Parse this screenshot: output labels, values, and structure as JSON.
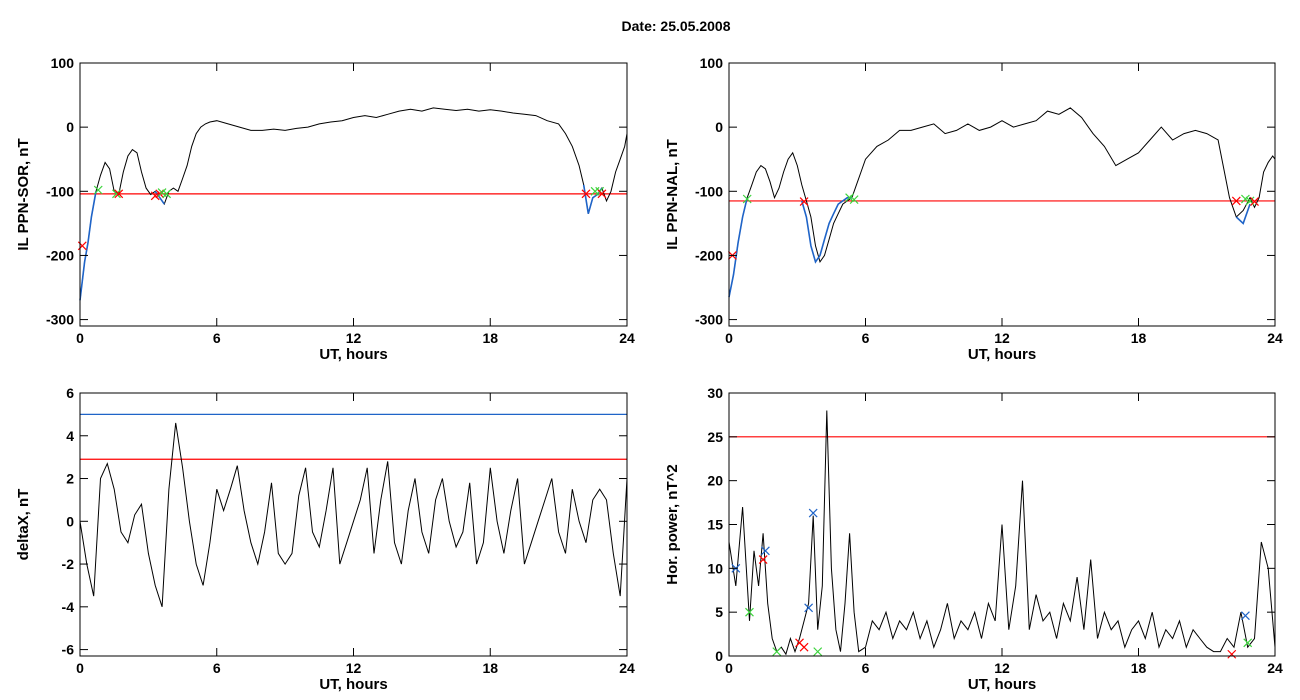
{
  "page": {
    "title": "Date:  25.05.2008"
  },
  "colors": {
    "black": "#000000",
    "red": "#ff0000",
    "blue": "#1f64c8",
    "green": "#3bd43b",
    "axes": "#000000"
  },
  "chart_data": [
    {
      "type": "line",
      "xlabel": "UT, hours",
      "ylabel": "IL PPN-SOR, nT",
      "xlim": [
        0,
        24
      ],
      "ylim": [
        -310,
        100
      ],
      "xticks": [
        0,
        6,
        12,
        18,
        24
      ],
      "yticks": [
        -300,
        -200,
        -100,
        0,
        100
      ],
      "grid": false,
      "series": [
        {
          "style": "black",
          "x": [
            0,
            0.2,
            0.35,
            0.5,
            0.7,
            0.9,
            1.1,
            1.3,
            1.5,
            1.7,
            1.9,
            2.1,
            2.3,
            2.5,
            2.7,
            2.9,
            3.1,
            3.3,
            3.5,
            3.7,
            3.9,
            4.1,
            4.3,
            4.5,
            4.7,
            4.9,
            5.1,
            5.3,
            5.5,
            5.7,
            6.0,
            6.5,
            7.0,
            7.5,
            8.0,
            8.5,
            9.0,
            9.5,
            10.0,
            10.5,
            11.0,
            11.5,
            12.0,
            12.5,
            13.0,
            13.5,
            14.0,
            14.5,
            15.0,
            15.5,
            16.0,
            16.5,
            17.0,
            17.5,
            18.0,
            18.5,
            19.0,
            19.5,
            20.0,
            20.5,
            21.0,
            21.3,
            21.6,
            21.9,
            22.1,
            22.3,
            22.5,
            22.7,
            22.9,
            23.1,
            23.3,
            23.5,
            23.7,
            23.9,
            24.0
          ],
          "y": [
            -270,
            -210,
            -180,
            -140,
            -100,
            -75,
            -55,
            -65,
            -100,
            -105,
            -70,
            -45,
            -35,
            -40,
            -70,
            -95,
            -105,
            -100,
            -110,
            -120,
            -100,
            -95,
            -100,
            -80,
            -60,
            -30,
            -10,
            0,
            5,
            8,
            10,
            5,
            0,
            -5,
            -5,
            -3,
            -5,
            -2,
            0,
            5,
            8,
            10,
            15,
            18,
            15,
            20,
            25,
            28,
            25,
            30,
            28,
            26,
            28,
            25,
            27,
            25,
            22,
            20,
            18,
            10,
            5,
            -10,
            -30,
            -60,
            -90,
            -135,
            -110,
            -105,
            -95,
            -115,
            -100,
            -70,
            -50,
            -30,
            -10
          ]
        },
        {
          "style": "blue",
          "x": [
            0,
            0.2,
            0.35,
            0.5,
            0.7,
            3.3,
            3.5,
            3.7,
            22.1,
            22.3,
            22.5,
            22.7,
            22.9
          ],
          "y": [
            -270,
            -210,
            -180,
            -140,
            -100,
            -100,
            -110,
            -120,
            -90,
            -135,
            -110,
            -105,
            -95
          ]
        }
      ],
      "hlines": [
        {
          "y": -104,
          "style": "red"
        }
      ],
      "markers": [
        {
          "x": 0.1,
          "y": -185,
          "style": "red"
        },
        {
          "x": 0.8,
          "y": -98,
          "style": "green"
        },
        {
          "x": 1.6,
          "y": -104,
          "style": "green"
        },
        {
          "x": 1.7,
          "y": -104,
          "style": "red"
        },
        {
          "x": 3.3,
          "y": -107,
          "style": "red"
        },
        {
          "x": 3.5,
          "y": -104,
          "style": "red"
        },
        {
          "x": 3.6,
          "y": -102,
          "style": "green"
        },
        {
          "x": 3.8,
          "y": -104,
          "style": "green"
        },
        {
          "x": 22.2,
          "y": -104,
          "style": "red"
        },
        {
          "x": 22.6,
          "y": -100,
          "style": "green"
        },
        {
          "x": 22.8,
          "y": -100,
          "style": "green"
        },
        {
          "x": 22.9,
          "y": -104,
          "style": "red"
        }
      ]
    },
    {
      "type": "line",
      "xlabel": "UT, hours",
      "ylabel": "IL PPN-NAL, nT",
      "xlim": [
        0,
        24
      ],
      "ylim": [
        -310,
        100
      ],
      "xticks": [
        0,
        6,
        12,
        18,
        24
      ],
      "yticks": [
        -300,
        -200,
        -100,
        0,
        100
      ],
      "grid": false,
      "series": [
        {
          "style": "black",
          "x": [
            0,
            0.2,
            0.4,
            0.6,
            0.8,
            1.0,
            1.2,
            1.4,
            1.6,
            1.8,
            2.0,
            2.2,
            2.4,
            2.6,
            2.8,
            3.0,
            3.2,
            3.4,
            3.6,
            3.8,
            4.0,
            4.2,
            4.4,
            4.6,
            4.8,
            5.0,
            5.2,
            5.4,
            5.6,
            5.8,
            6.0,
            6.5,
            7.0,
            7.5,
            8.0,
            8.5,
            9.0,
            9.5,
            10.0,
            10.5,
            11.0,
            11.5,
            12.0,
            12.5,
            13.0,
            13.5,
            14.0,
            14.5,
            15.0,
            15.5,
            16.0,
            16.5,
            17.0,
            17.5,
            18.0,
            18.5,
            19.0,
            19.5,
            20.0,
            20.5,
            21.0,
            21.5,
            22.0,
            22.3,
            22.6,
            22.9,
            23.1,
            23.3,
            23.5,
            23.7,
            23.9,
            24.0
          ],
          "y": [
            -265,
            -230,
            -180,
            -140,
            -110,
            -90,
            -70,
            -60,
            -65,
            -85,
            -110,
            -95,
            -70,
            -50,
            -40,
            -60,
            -90,
            -115,
            -140,
            -185,
            -210,
            -200,
            -175,
            -150,
            -135,
            -120,
            -115,
            -110,
            -90,
            -70,
            -50,
            -30,
            -20,
            -5,
            -5,
            0,
            5,
            -10,
            -5,
            5,
            -5,
            0,
            10,
            0,
            5,
            10,
            25,
            20,
            30,
            15,
            -10,
            -30,
            -60,
            -50,
            -40,
            -20,
            0,
            -20,
            -10,
            -5,
            -10,
            -20,
            -110,
            -140,
            -130,
            -110,
            -125,
            -110,
            -70,
            -55,
            -45,
            -50
          ]
        },
        {
          "style": "blue",
          "x": [
            0,
            0.2,
            0.4,
            0.6,
            0.8,
            3.2,
            3.4,
            3.6,
            3.8,
            4.0,
            4.2,
            4.4,
            4.6,
            4.8,
            5.0,
            5.2,
            5.4,
            22.3,
            22.6,
            22.9
          ],
          "y": [
            -265,
            -230,
            -180,
            -140,
            -110,
            -115,
            -140,
            -185,
            -210,
            -200,
            -175,
            -150,
            -135,
            -120,
            -115,
            -110,
            -110,
            -140,
            -150,
            -120
          ]
        }
      ],
      "hlines": [
        {
          "y": -115,
          "style": "red"
        }
      ],
      "markers": [
        {
          "x": 0.15,
          "y": -200,
          "style": "red"
        },
        {
          "x": 0.8,
          "y": -112,
          "style": "green"
        },
        {
          "x": 3.3,
          "y": -116,
          "style": "red"
        },
        {
          "x": 5.3,
          "y": -110,
          "style": "green"
        },
        {
          "x": 5.5,
          "y": -113,
          "style": "green"
        },
        {
          "x": 22.3,
          "y": -115,
          "style": "red"
        },
        {
          "x": 22.7,
          "y": -112,
          "style": "green"
        },
        {
          "x": 22.9,
          "y": -115,
          "style": "green"
        },
        {
          "x": 23.1,
          "y": -116,
          "style": "red"
        }
      ]
    },
    {
      "type": "line",
      "xlabel": "UT, hours",
      "ylabel": "deltaX, nT",
      "xlim": [
        0,
        24
      ],
      "ylim": [
        -6.3,
        6
      ],
      "xticks": [
        0,
        6,
        12,
        18,
        24
      ],
      "yticks": [
        -6,
        -4,
        -2,
        0,
        2,
        4,
        6
      ],
      "grid": false,
      "series": [
        {
          "style": "black",
          "x": [
            0,
            0.3,
            0.6,
            0.9,
            1.2,
            1.5,
            1.8,
            2.1,
            2.4,
            2.7,
            3.0,
            3.3,
            3.6,
            3.9,
            4.2,
            4.5,
            4.8,
            5.1,
            5.4,
            5.7,
            6.0,
            6.3,
            6.6,
            6.9,
            7.2,
            7.5,
            7.8,
            8.1,
            8.4,
            8.7,
            9.0,
            9.3,
            9.6,
            9.9,
            10.2,
            10.5,
            10.8,
            11.1,
            11.4,
            11.7,
            12.0,
            12.3,
            12.6,
            12.9,
            13.2,
            13.5,
            13.8,
            14.1,
            14.4,
            14.7,
            15.0,
            15.3,
            15.6,
            15.9,
            16.2,
            16.5,
            16.8,
            17.1,
            17.4,
            17.7,
            18.0,
            18.3,
            18.6,
            18.9,
            19.2,
            19.5,
            19.8,
            20.1,
            20.4,
            20.7,
            21.0,
            21.3,
            21.6,
            21.9,
            22.2,
            22.5,
            22.8,
            23.1,
            23.4,
            23.7,
            24.0
          ],
          "y": [
            0,
            -2,
            -3.5,
            2,
            2.7,
            1.5,
            -0.5,
            -1,
            0.3,
            0.8,
            -1.5,
            -3,
            -4,
            1.5,
            4.6,
            2.5,
            0,
            -2,
            -3,
            -1,
            1.5,
            0.5,
            1.5,
            2.6,
            0.5,
            -1,
            -2,
            -0.5,
            1.8,
            -1.5,
            -2,
            -1.5,
            1.2,
            2.5,
            -0.5,
            -1.2,
            0.5,
            2.5,
            -2,
            -1,
            0,
            1,
            2.5,
            -1.5,
            1,
            2.8,
            -1,
            -2,
            0.5,
            2,
            -0.5,
            -1.5,
            1,
            2,
            0,
            -1.2,
            -0.5,
            1.8,
            -2,
            -1,
            2.5,
            0,
            -1.5,
            0.5,
            2,
            -2,
            -1,
            0,
            1,
            2,
            -0.5,
            -1.5,
            1.5,
            0,
            -1,
            1,
            1.5,
            1,
            -1.5,
            -3.5,
            2
          ]
        }
      ],
      "hlines": [
        {
          "y": 5,
          "style": "blue"
        },
        {
          "y": 2.9,
          "style": "red"
        }
      ],
      "markers": []
    },
    {
      "type": "line",
      "xlabel": "UT, hours",
      "ylabel": "Hor. power, nT^2",
      "xlim": [
        0,
        24
      ],
      "ylim": [
        0,
        30
      ],
      "xticks": [
        0,
        6,
        12,
        18,
        24
      ],
      "yticks": [
        0,
        5,
        10,
        15,
        20,
        25,
        30
      ],
      "grid": false,
      "series": [
        {
          "style": "black",
          "x": [
            0,
            0.3,
            0.6,
            0.9,
            1.1,
            1.3,
            1.5,
            1.7,
            1.9,
            2.1,
            2.3,
            2.5,
            2.7,
            2.9,
            3.1,
            3.3,
            3.5,
            3.7,
            3.9,
            4.1,
            4.3,
            4.5,
            4.7,
            4.9,
            5.1,
            5.3,
            5.5,
            5.7,
            6.0,
            6.3,
            6.6,
            6.9,
            7.2,
            7.5,
            7.8,
            8.1,
            8.4,
            8.7,
            9.0,
            9.3,
            9.6,
            9.9,
            10.2,
            10.5,
            10.8,
            11.1,
            11.4,
            11.7,
            12.0,
            12.3,
            12.6,
            12.9,
            13.2,
            13.5,
            13.8,
            14.1,
            14.4,
            14.7,
            15.0,
            15.3,
            15.6,
            15.9,
            16.2,
            16.5,
            16.8,
            17.1,
            17.4,
            17.7,
            18.0,
            18.3,
            18.6,
            18.9,
            19.2,
            19.5,
            19.8,
            20.1,
            20.4,
            20.7,
            21.0,
            21.3,
            21.6,
            21.9,
            22.2,
            22.5,
            22.8,
            23.1,
            23.4,
            23.7,
            24.0
          ],
          "y": [
            13,
            8,
            17,
            4,
            12,
            8,
            14,
            6,
            2,
            0.5,
            1,
            0.2,
            2,
            0.5,
            2,
            4,
            6,
            16,
            3,
            8,
            28,
            10,
            3,
            0.5,
            6,
            14,
            5,
            0.5,
            1,
            4,
            3,
            5,
            2,
            4,
            3,
            5,
            2,
            4,
            1,
            3,
            6,
            2,
            4,
            3,
            5,
            2,
            6,
            4,
            15,
            3,
            8,
            20,
            3,
            7,
            4,
            5,
            2,
            6,
            4,
            9,
            3,
            11,
            2,
            5,
            3,
            4,
            1,
            3,
            4,
            2,
            5,
            1,
            3,
            2,
            4,
            1,
            3,
            2,
            1,
            0.5,
            0.5,
            2,
            1,
            5,
            1,
            2,
            13,
            10,
            1
          ]
        }
      ],
      "hlines": [
        {
          "y": 25,
          "style": "red"
        }
      ],
      "markers": [
        {
          "x": 0.3,
          "y": 10,
          "style": "blue"
        },
        {
          "x": 0.9,
          "y": 5,
          "style": "green"
        },
        {
          "x": 1.5,
          "y": 11,
          "style": "red"
        },
        {
          "x": 1.6,
          "y": 12,
          "style": "blue"
        },
        {
          "x": 2.1,
          "y": 0.5,
          "style": "green"
        },
        {
          "x": 3.1,
          "y": 1.5,
          "style": "red"
        },
        {
          "x": 3.3,
          "y": 1,
          "style": "red"
        },
        {
          "x": 3.5,
          "y": 5.5,
          "style": "blue"
        },
        {
          "x": 3.7,
          "y": 16.3,
          "style": "blue"
        },
        {
          "x": 3.9,
          "y": 0.5,
          "style": "green"
        },
        {
          "x": 22.1,
          "y": 0.2,
          "style": "red"
        },
        {
          "x": 22.7,
          "y": 4.6,
          "style": "blue"
        },
        {
          "x": 22.8,
          "y": 1.5,
          "style": "green"
        }
      ]
    }
  ]
}
